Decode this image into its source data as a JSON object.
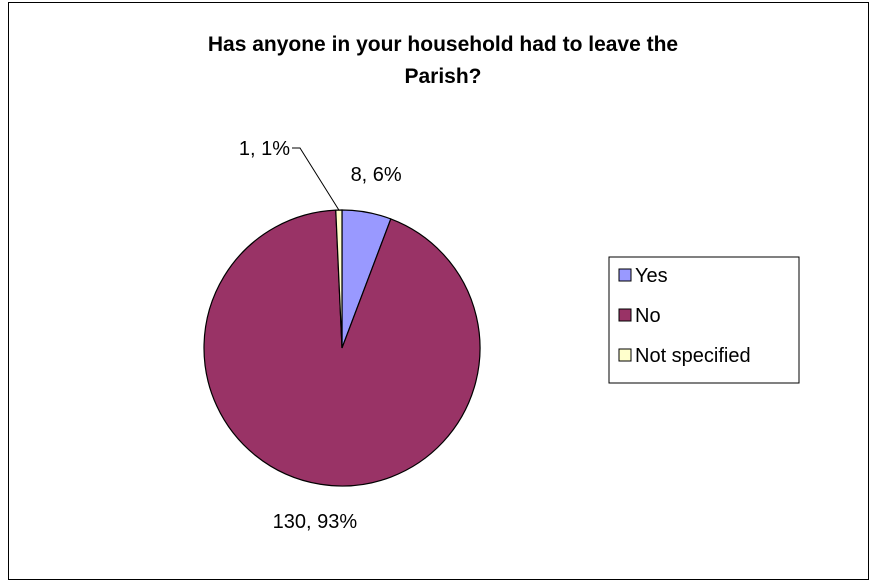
{
  "chart_data": {
    "type": "pie",
    "title_lines": [
      "Has anyone in your household had to leave the",
      "Parish?"
    ],
    "categories": [
      "Yes",
      "No",
      "Not specified"
    ],
    "values": [
      8,
      130,
      1
    ],
    "percentages": [
      "6%",
      "93%",
      "1%"
    ],
    "data_labels": [
      "8, 6%",
      "130, 93%",
      "1, 1%"
    ],
    "colors": [
      "#9999ff",
      "#993366",
      "#ffffcc"
    ],
    "legend_position": "right",
    "start_angle_deg": 0,
    "direction": "clockwise"
  }
}
